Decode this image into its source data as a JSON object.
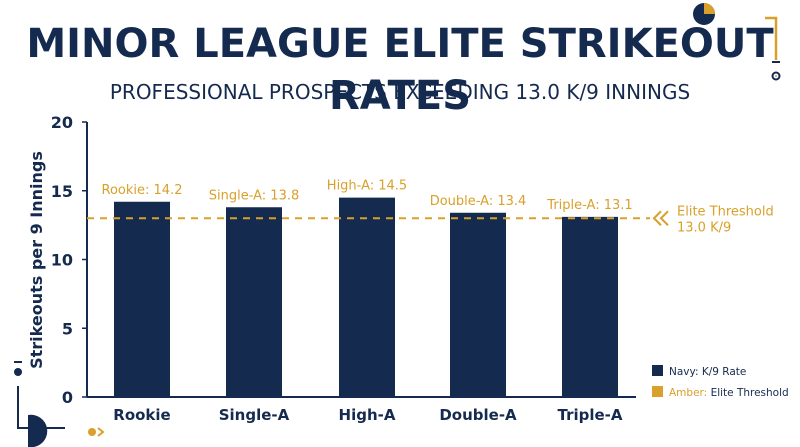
{
  "chart_data": {
    "type": "bar",
    "title": "MINOR LEAGUE ELITE STRIKEOUT RATES",
    "subtitle": "PROFESSIONAL PROSPECTS EXCEEDING 13.0 K/9 INNINGS",
    "xlabel": "",
    "ylabel": "Strikeouts per 9 Innings",
    "categories": [
      "Rookie",
      "Single-A",
      "High-A",
      "Double-A",
      "Triple-A"
    ],
    "values": [
      14.2,
      13.8,
      14.5,
      13.4,
      13.1
    ],
    "data_labels": [
      "Rookie: 14.2",
      "Single-A: 13.8",
      "High-A: 14.5",
      "Double-A: 13.4",
      "Triple-A: 13.1"
    ],
    "ylim": [
      0,
      20
    ],
    "yticks": [
      0,
      5,
      10,
      15,
      20
    ],
    "threshold": {
      "value": 13.0,
      "label_line1": "Elite Threshold",
      "label_line2": "13.0 K/9"
    },
    "legend": {
      "placement": "bottom-right",
      "items": [
        {
          "prefix": "Navy:",
          "text": "K/9 Rate",
          "color": "#152a4f"
        },
        {
          "prefix": "Amber:",
          "text": "Elite Threshold",
          "color": "#d9a02b"
        }
      ]
    },
    "grid": false
  },
  "colors": {
    "navy": "#152a4f",
    "amber": "#d9a02b",
    "background": "#ffffff"
  }
}
